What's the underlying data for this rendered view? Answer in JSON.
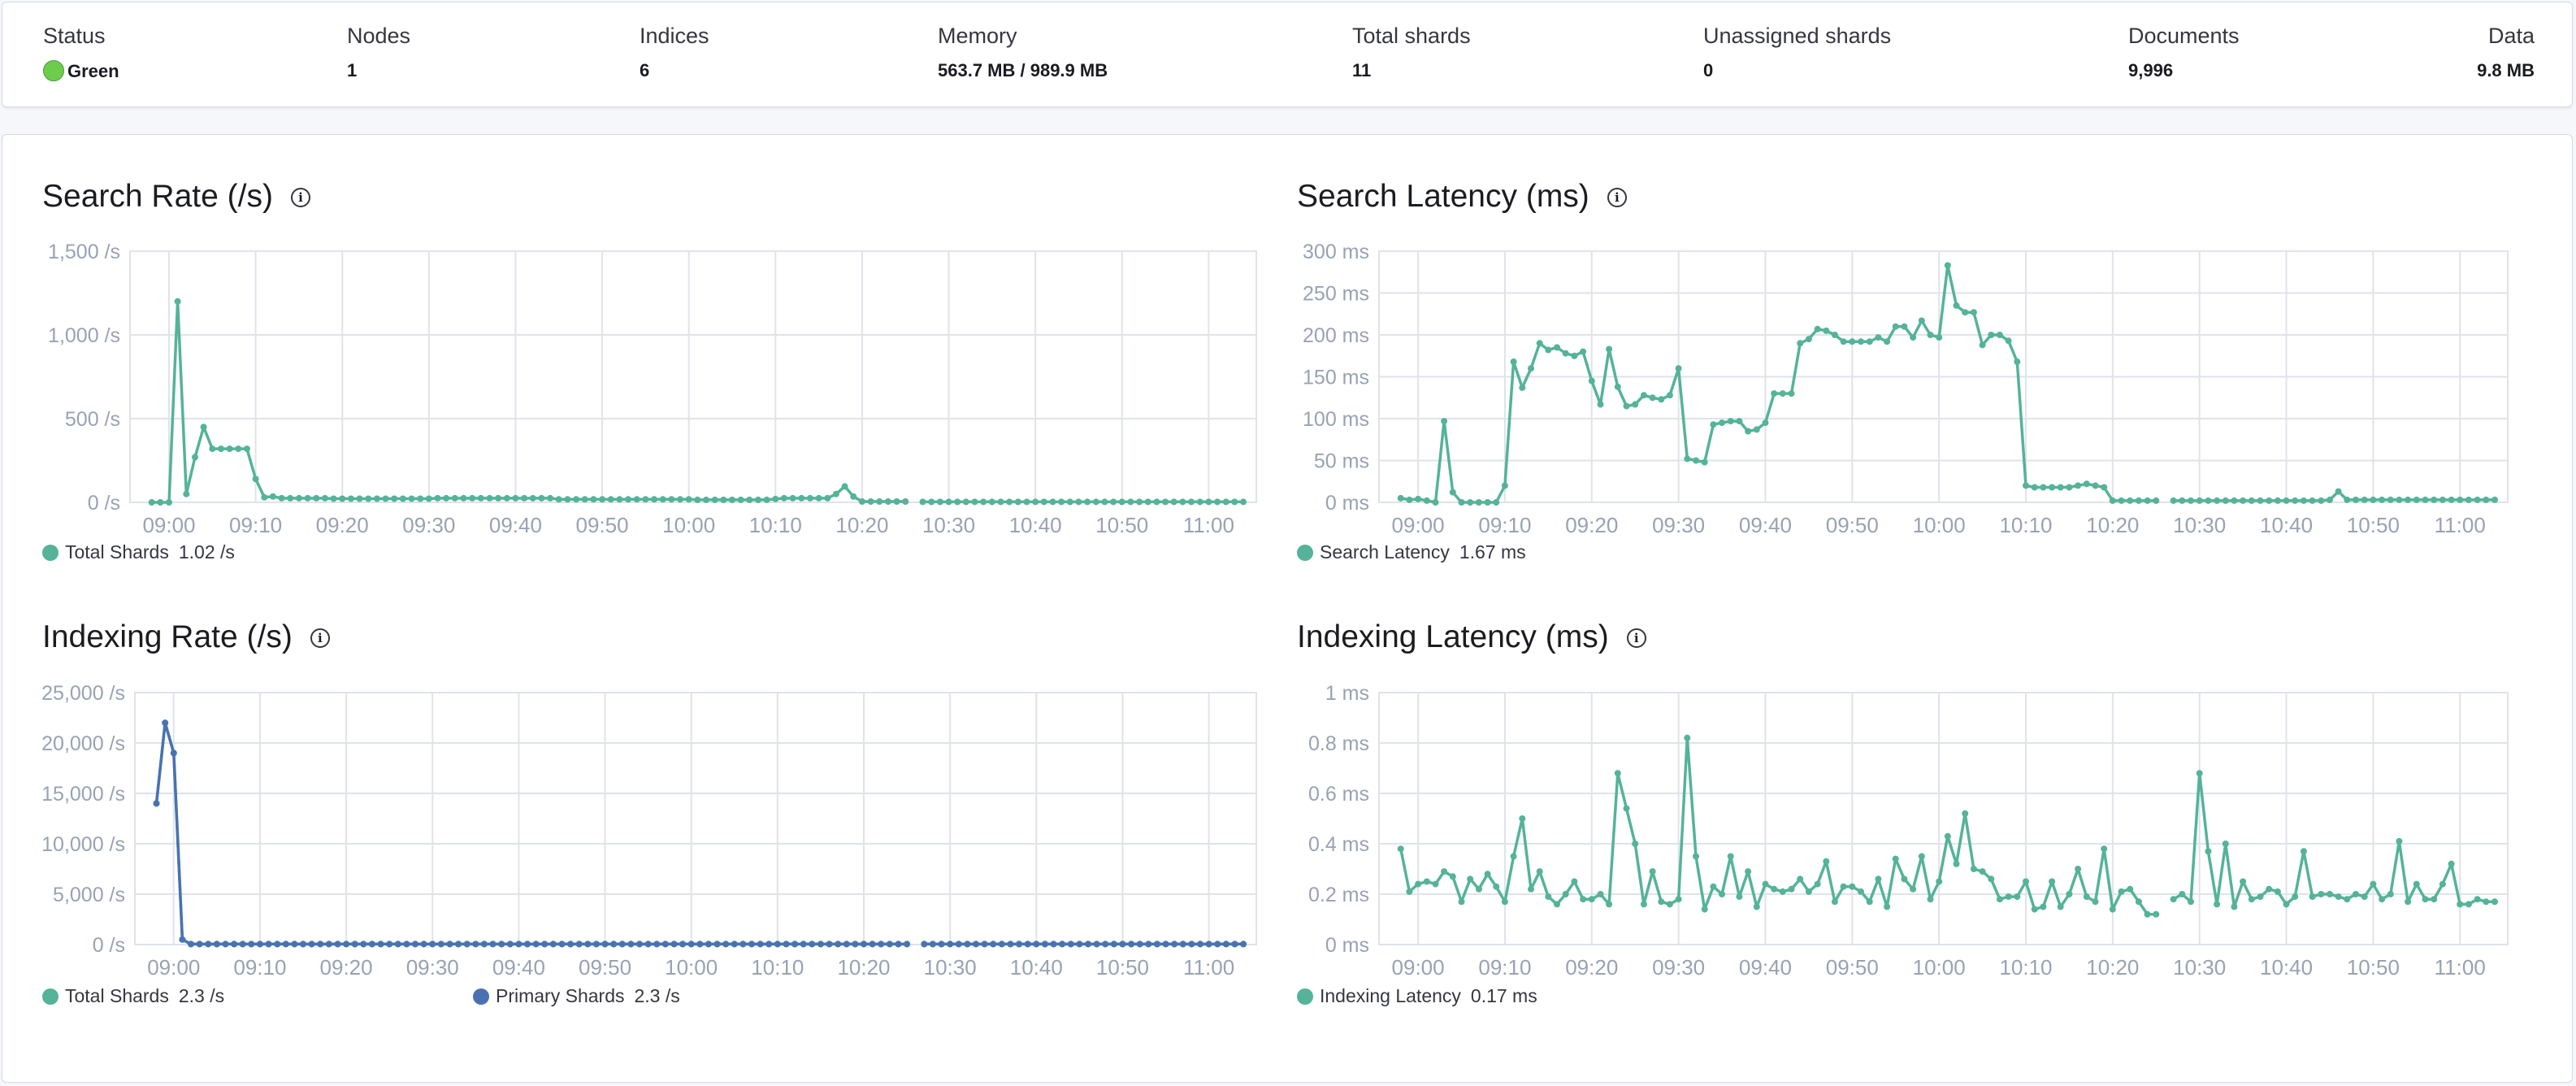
{
  "summary": {
    "status": {
      "label": "Status",
      "value": "Green",
      "color": "#6dcc4c"
    },
    "nodes": {
      "label": "Nodes",
      "value": "1"
    },
    "indices": {
      "label": "Indices",
      "value": "6"
    },
    "memory": {
      "label": "Memory",
      "value": "563.7 MB / 989.9 MB"
    },
    "total_shards": {
      "label": "Total shards",
      "value": "11"
    },
    "unassigned_shards": {
      "label": "Unassigned shards",
      "value": "0"
    },
    "documents": {
      "label": "Documents",
      "value": "9,996"
    },
    "data": {
      "label": "Data",
      "value": "9.8 MB"
    }
  },
  "colors": {
    "teal": "#54B399",
    "blue": "#4A72B0",
    "grid": "#dfe3ea",
    "tick": "#98a2b3"
  },
  "chart_data": {
    "x": [
      "08:58",
      "08:59",
      "09:00",
      "09:01",
      "09:02",
      "09:03",
      "09:04",
      "09:05",
      "09:06",
      "09:07",
      "09:08",
      "09:09",
      "09:10",
      "09:11",
      "09:12",
      "09:13",
      "09:14",
      "09:15",
      "09:16",
      "09:17",
      "09:18",
      "09:19",
      "09:20",
      "09:21",
      "09:22",
      "09:23",
      "09:24",
      "09:25",
      "09:26",
      "09:27",
      "09:28",
      "09:29",
      "09:30",
      "09:31",
      "09:32",
      "09:33",
      "09:34",
      "09:35",
      "09:36",
      "09:37",
      "09:38",
      "09:39",
      "09:40",
      "09:41",
      "09:42",
      "09:43",
      "09:44",
      "09:45",
      "09:46",
      "09:47",
      "09:48",
      "09:49",
      "09:50",
      "09:51",
      "09:52",
      "09:53",
      "09:54",
      "09:55",
      "09:56",
      "09:57",
      "09:58",
      "09:59",
      "10:00",
      "10:01",
      "10:02",
      "10:03",
      "10:04",
      "10:05",
      "10:06",
      "10:07",
      "10:08",
      "10:09",
      "10:10",
      "10:11",
      "10:12",
      "10:13",
      "10:14",
      "10:15",
      "10:16",
      "10:17",
      "10:18",
      "10:19",
      "10:20",
      "10:21",
      "10:22",
      "10:23",
      "10:24",
      "10:25",
      "10:26",
      "10:27",
      "10:28",
      "10:29",
      "10:30",
      "10:31",
      "10:32",
      "10:33",
      "10:34",
      "10:35",
      "10:36",
      "10:37",
      "10:38",
      "10:39",
      "10:40",
      "10:41",
      "10:42",
      "10:43",
      "10:44",
      "10:45",
      "10:46",
      "10:47",
      "10:48",
      "10:49",
      "10:50",
      "10:51",
      "10:52",
      "10:53",
      "10:54",
      "10:55",
      "10:56",
      "10:57",
      "10:58",
      "10:59",
      "11:00",
      "11:01",
      "11:02",
      "11:03",
      "11:04"
    ],
    "x_ticks": [
      "09:00",
      "09:10",
      "09:20",
      "09:30",
      "09:40",
      "09:50",
      "10:00",
      "10:10",
      "10:20",
      "10:30",
      "10:40",
      "10:50",
      "11:00"
    ],
    "xlim": [
      "08:55:30",
      "11:05:30"
    ],
    "charts": [
      {
        "id": "search-rate",
        "type": "line",
        "title": "Search Rate (/s)",
        "unit": "/s",
        "ylim": [
          0,
          1500
        ],
        "y_ticks": [
          0,
          500,
          1000,
          1500
        ],
        "y_tick_labels": [
          "0 /s",
          "500 /s",
          "1,000 /s",
          "1,500 /s"
        ],
        "grid": true,
        "legend": "bottom-left",
        "series": [
          {
            "name": "Total Shards",
            "legend_value": "1.02 /s",
            "color": "#54B399",
            "values": [
              0,
              0,
              0,
              1200,
              50,
              270,
              450,
              320,
              320,
              320,
              320,
              320,
              140,
              30,
              35,
              25,
              25,
              25,
              25,
              25,
              25,
              22,
              22,
              22,
              22,
              22,
              22,
              22,
              22,
              22,
              22,
              22,
              22,
              25,
              25,
              25,
              25,
              25,
              25,
              25,
              25,
              25,
              25,
              25,
              25,
              25,
              25,
              18,
              18,
              18,
              18,
              18,
              18,
              18,
              18,
              18,
              18,
              18,
              18,
              18,
              18,
              18,
              18,
              15,
              15,
              15,
              15,
              15,
              15,
              15,
              15,
              15,
              20,
              25,
              25,
              25,
              25,
              25,
              25,
              50,
              95,
              35,
              5,
              5,
              5,
              5,
              5,
              5,
              null,
              3,
              3,
              3,
              3,
              3,
              3,
              3,
              3,
              3,
              3,
              3,
              3,
              3,
              3,
              3,
              3,
              3,
              3,
              3,
              3,
              3,
              3,
              3,
              3,
              3,
              3,
              3,
              3,
              3,
              3,
              3,
              3,
              3,
              3,
              3,
              3,
              3,
              3
            ]
          }
        ]
      },
      {
        "id": "search-latency",
        "type": "line",
        "title": "Search Latency (ms)",
        "unit": "ms",
        "ylim": [
          0,
          300
        ],
        "y_ticks": [
          0,
          50,
          100,
          150,
          200,
          250,
          300
        ],
        "y_tick_labels": [
          "0 ms",
          "50 ms",
          "100 ms",
          "150 ms",
          "200 ms",
          "250 ms",
          "300 ms"
        ],
        "grid": true,
        "legend": "bottom-left",
        "series": [
          {
            "name": "Search Latency",
            "legend_value": "1.67 ms",
            "color": "#54B399",
            "values": [
              5,
              3,
              4,
              2,
              0,
              97,
              12,
              0,
              0,
              0,
              0,
              0,
              20,
              168,
              137,
              160,
              190,
              182,
              185,
              178,
              175,
              180,
              145,
              117,
              183,
              138,
              115,
              117,
              128,
              125,
              123,
              128,
              160,
              52,
              50,
              48,
              93,
              95,
              97,
              97,
              85,
              87,
              95,
              130,
              130,
              130,
              190,
              195,
              207,
              205,
              200,
              192,
              192,
              192,
              192,
              197,
              192,
              210,
              210,
              197,
              217,
              200,
              197,
              283,
              235,
              227,
              227,
              188,
              200,
              200,
              193,
              168,
              20,
              18,
              18,
              18,
              18,
              18,
              20,
              22,
              20,
              18,
              2,
              2,
              2,
              2,
              2,
              2,
              null,
              2,
              2,
              2,
              2,
              2,
              2,
              2,
              2,
              2,
              2,
              2,
              2,
              2,
              2,
              2,
              2,
              2,
              2,
              3,
              13,
              3,
              3,
              3,
              3,
              3,
              3,
              3,
              3,
              3,
              3,
              3,
              3,
              3,
              3,
              3,
              3,
              3,
              3
            ]
          }
        ]
      },
      {
        "id": "indexing-rate",
        "type": "line",
        "title": "Indexing Rate (/s)",
        "unit": "/s",
        "ylim": [
          0,
          25000
        ],
        "y_ticks": [
          0,
          5000,
          10000,
          15000,
          20000,
          25000
        ],
        "y_tick_labels": [
          "0 /s",
          "5,000 /s",
          "10,000 /s",
          "15,000 /s",
          "20,000 /s",
          "25,000 /s"
        ],
        "grid": true,
        "legend": "bottom-left",
        "series": [
          {
            "name": "Total Shards",
            "legend_value": "2.3 /s",
            "color": "#54B399",
            "values": [
              14000,
              22000,
              19000,
              500,
              50,
              50,
              50,
              50,
              50,
              50,
              50,
              50,
              50,
              50,
              50,
              50,
              50,
              50,
              50,
              50,
              50,
              50,
              50,
              50,
              50,
              50,
              50,
              50,
              50,
              50,
              50,
              50,
              50,
              50,
              50,
              50,
              50,
              50,
              50,
              50,
              50,
              50,
              50,
              50,
              50,
              50,
              50,
              50,
              50,
              50,
              50,
              50,
              50,
              50,
              50,
              50,
              50,
              50,
              50,
              50,
              50,
              50,
              50,
              50,
              50,
              50,
              50,
              50,
              50,
              50,
              50,
              50,
              50,
              50,
              50,
              50,
              50,
              50,
              50,
              50,
              50,
              50,
              50,
              50,
              50,
              50,
              50,
              50,
              null,
              50,
              50,
              50,
              50,
              50,
              50,
              50,
              50,
              50,
              50,
              50,
              50,
              50,
              50,
              50,
              50,
              50,
              50,
              50,
              50,
              50,
              50,
              50,
              50,
              50,
              50,
              50,
              50,
              50,
              50,
              50,
              50,
              50,
              50,
              50,
              50,
              50,
              50
            ]
          },
          {
            "name": "Primary Shards",
            "legend_value": "2.3 /s",
            "color": "#4A72B0",
            "values": [
              14000,
              22000,
              19000,
              500,
              50,
              50,
              50,
              50,
              50,
              50,
              50,
              50,
              50,
              50,
              50,
              50,
              50,
              50,
              50,
              50,
              50,
              50,
              50,
              50,
              50,
              50,
              50,
              50,
              50,
              50,
              50,
              50,
              50,
              50,
              50,
              50,
              50,
              50,
              50,
              50,
              50,
              50,
              50,
              50,
              50,
              50,
              50,
              50,
              50,
              50,
              50,
              50,
              50,
              50,
              50,
              50,
              50,
              50,
              50,
              50,
              50,
              50,
              50,
              50,
              50,
              50,
              50,
              50,
              50,
              50,
              50,
              50,
              50,
              50,
              50,
              50,
              50,
              50,
              50,
              50,
              50,
              50,
              50,
              50,
              50,
              50,
              50,
              50,
              null,
              50,
              50,
              50,
              50,
              50,
              50,
              50,
              50,
              50,
              50,
              50,
              50,
              50,
              50,
              50,
              50,
              50,
              50,
              50,
              50,
              50,
              50,
              50,
              50,
              50,
              50,
              50,
              50,
              50,
              50,
              50,
              50,
              50,
              50,
              50,
              50,
              50,
              50
            ]
          }
        ]
      },
      {
        "id": "indexing-latency",
        "type": "line",
        "title": "Indexing Latency (ms)",
        "unit": "ms",
        "ylim": [
          0,
          1
        ],
        "y_ticks": [
          0,
          0.2,
          0.4,
          0.6,
          0.8,
          1
        ],
        "y_tick_labels": [
          "0 ms",
          "0.2 ms",
          "0.4 ms",
          "0.6 ms",
          "0.8 ms",
          "1 ms"
        ],
        "grid": true,
        "legend": "bottom-left",
        "series": [
          {
            "name": "Indexing Latency",
            "legend_value": "0.17 ms",
            "color": "#54B399",
            "values": [
              0.38,
              0.21,
              0.24,
              0.25,
              0.24,
              0.29,
              0.27,
              0.17,
              0.26,
              0.22,
              0.28,
              0.23,
              0.17,
              0.35,
              0.5,
              0.22,
              0.29,
              0.19,
              0.16,
              0.2,
              0.25,
              0.18,
              0.18,
              0.2,
              0.16,
              0.68,
              0.54,
              0.4,
              0.16,
              0.29,
              0.17,
              0.16,
              0.18,
              0.82,
              0.35,
              0.14,
              0.23,
              0.2,
              0.35,
              0.19,
              0.29,
              0.15,
              0.24,
              0.22,
              0.21,
              0.22,
              0.26,
              0.21,
              0.24,
              0.33,
              0.17,
              0.23,
              0.23,
              0.21,
              0.17,
              0.26,
              0.15,
              0.34,
              0.26,
              0.22,
              0.35,
              0.18,
              0.25,
              0.43,
              0.32,
              0.52,
              0.3,
              0.29,
              0.26,
              0.18,
              0.19,
              0.19,
              0.25,
              0.14,
              0.15,
              0.25,
              0.15,
              0.2,
              0.3,
              0.19,
              0.17,
              0.38,
              0.14,
              0.21,
              0.22,
              0.17,
              0.12,
              0.12,
              null,
              0.18,
              0.2,
              0.17,
              0.68,
              0.37,
              0.16,
              0.4,
              0.15,
              0.25,
              0.18,
              0.19,
              0.22,
              0.21,
              0.16,
              0.19,
              0.37,
              0.19,
              0.2,
              0.2,
              0.19,
              0.18,
              0.2,
              0.19,
              0.24,
              0.18,
              0.2,
              0.41,
              0.17,
              0.24,
              0.18,
              0.18,
              0.24,
              0.32,
              0.16,
              0.16,
              0.18,
              0.17,
              0.17
            ]
          }
        ]
      }
    ]
  }
}
